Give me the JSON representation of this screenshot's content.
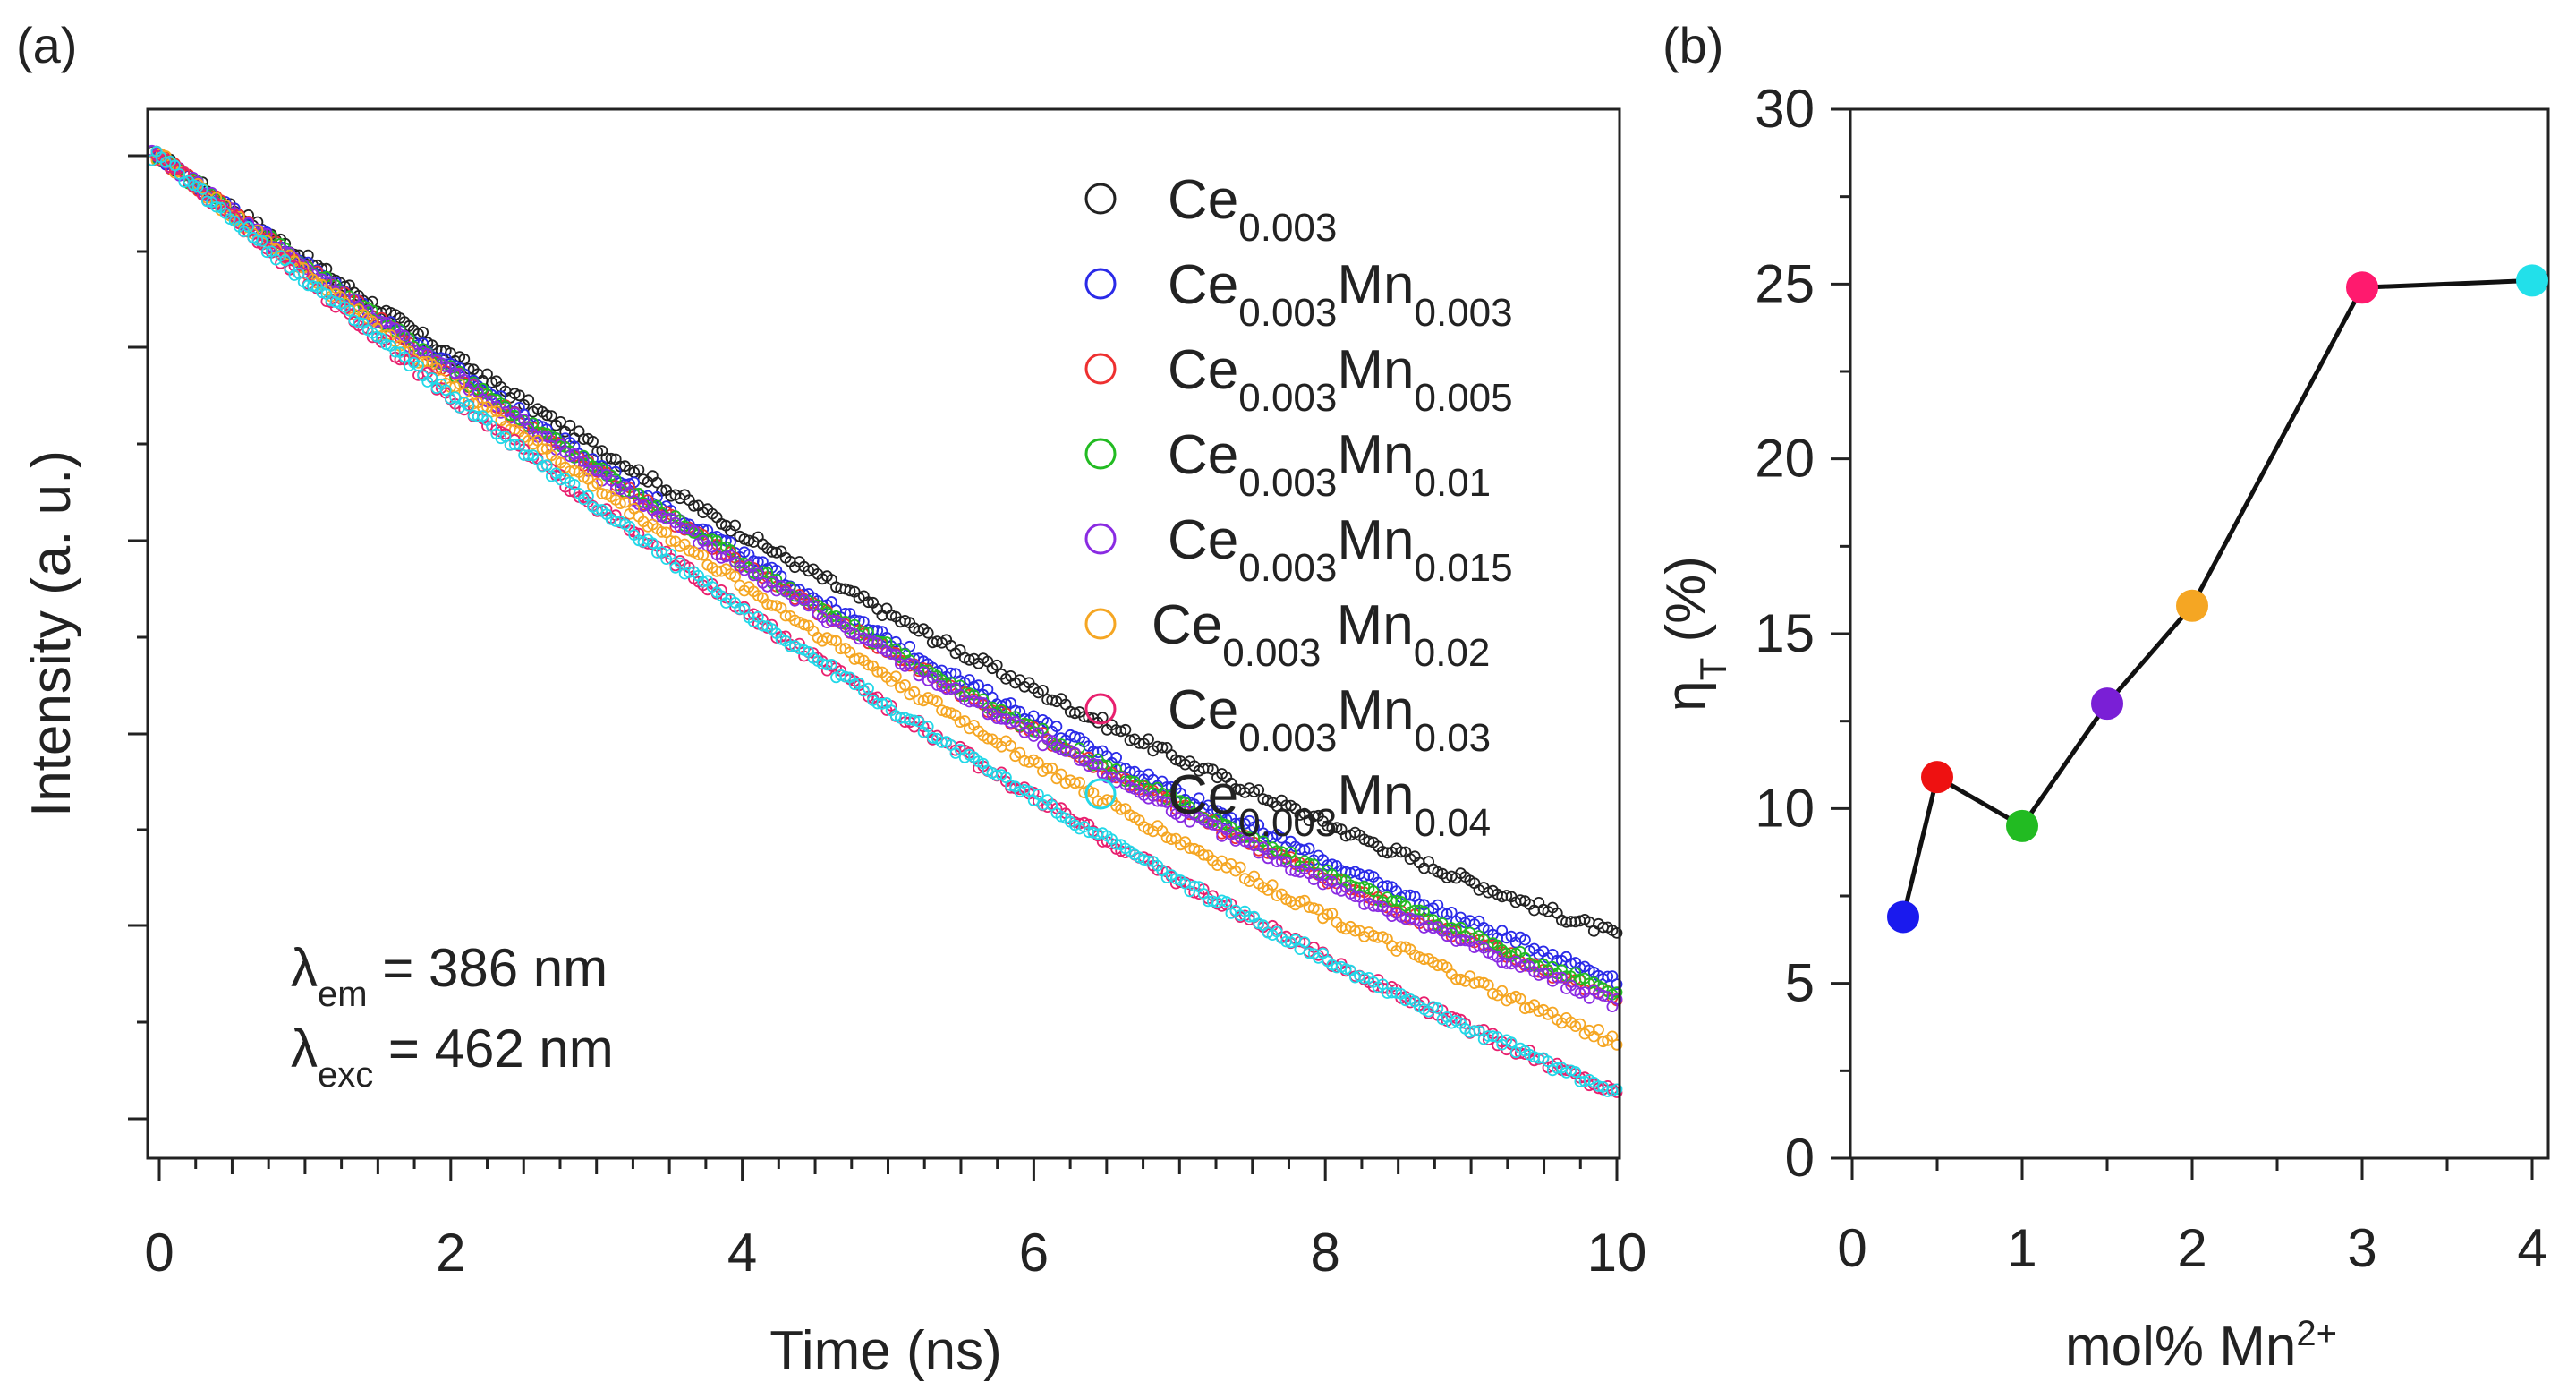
{
  "panel_a_label": "(a)",
  "panel_b_label": "(b)",
  "chart_data": [
    {
      "type": "scatter",
      "panel": "(a)",
      "title": "",
      "xlabel": "Time (ns)",
      "ylabel": "Intensity (a. u.)",
      "xlim": [
        0,
        10
      ],
      "x_ticks": [
        "0",
        "2",
        "4",
        "6",
        "8",
        "10"
      ],
      "y_scale": "log (arbitrary units, no tick labels)",
      "annotation": {
        "line1": {
          "symbol": "λ",
          "sub": "em",
          "text": " = 386 nm"
        },
        "line2": {
          "symbol": "λ",
          "sub": "exc",
          "text": " = 462 nm"
        }
      },
      "series": [
        {
          "name": "Ce0.003",
          "legend": {
            "base": "Ce",
            "sub1": "0.003",
            "mid": "",
            "sub2": ""
          },
          "color": "#222222",
          "decay_ns": 10.8,
          "end_value": 0.073
        },
        {
          "name": "Ce0.003Mn0.003",
          "legend": {
            "base": "Ce",
            "sub1": "0.003",
            "mid": "Mn",
            "sub2": "0.003"
          },
          "color": "#2a2ae8",
          "decay_ns": 10.1,
          "end_value": 0.063
        },
        {
          "name": "Ce0.003Mn0.005",
          "legend": {
            "base": "Ce",
            "sub1": "0.003",
            "mid": "Mn",
            "sub2": "0.005"
          },
          "color": "#ee3030",
          "decay_ns": 9.8,
          "end_value": 0.059
        },
        {
          "name": "Ce0.003Mn0.01",
          "legend": {
            "base": "Ce",
            "sub1": "0.003",
            "mid": "Mn",
            "sub2": "0.01"
          },
          "color": "#22bb22",
          "decay_ns": 9.9,
          "end_value": 0.06
        },
        {
          "name": "Ce0.003Mn0.015",
          "legend": {
            "base": "Ce",
            "sub1": "0.003",
            "mid": "Mn",
            "sub2": "0.015"
          },
          "color": "#8a2be2",
          "decay_ns": 9.7,
          "end_value": 0.058
        },
        {
          "name": "Ce0.003 Mn0.02",
          "legend": {
            "base": "Ce",
            "sub1": "0.003",
            "mid": " Mn",
            "sub2": "0.02"
          },
          "color": "#f5a623",
          "decay_ns": 9.2,
          "end_value": 0.051
        },
        {
          "name": "Ce0.003Mn0.03",
          "legend": {
            "base": "Ce",
            "sub1": "0.003",
            "mid": "Mn",
            "sub2": "0.03"
          },
          "color": "#e8206e",
          "decay_ns": 8.4,
          "end_value": 0.043
        },
        {
          "name": "Ce0.003Mn0.04",
          "legend": {
            "base": "Ce",
            "sub1": "0.003",
            "mid": "Mn",
            "sub2": "0.04"
          },
          "color": "#22d8e8",
          "decay_ns": 8.5,
          "end_value": 0.043
        }
      ]
    },
    {
      "type": "line",
      "panel": "(b)",
      "title": "",
      "xlabel": {
        "text": "mol% Mn",
        "sup": "2+"
      },
      "ylabel": {
        "symbol": "η",
        "sub": "T",
        "text": " (%)"
      },
      "xlim": [
        0,
        4
      ],
      "ylim": [
        0,
        30
      ],
      "x_ticks": [
        "0",
        "1",
        "2",
        "3",
        "4"
      ],
      "y_ticks": [
        "0",
        "5",
        "10",
        "15",
        "20",
        "25",
        "30"
      ],
      "x": [
        0.3,
        0.5,
        1.0,
        1.5,
        2.0,
        3.0,
        4.0
      ],
      "y": [
        6.9,
        10.9,
        9.5,
        13.0,
        15.8,
        24.9,
        25.1
      ],
      "point_colors": [
        "#1a1aee",
        "#ee1111",
        "#22bb22",
        "#7a1fd6",
        "#f5a623",
        "#ff1a6e",
        "#22e0ea"
      ],
      "line_color": "#111111"
    }
  ]
}
